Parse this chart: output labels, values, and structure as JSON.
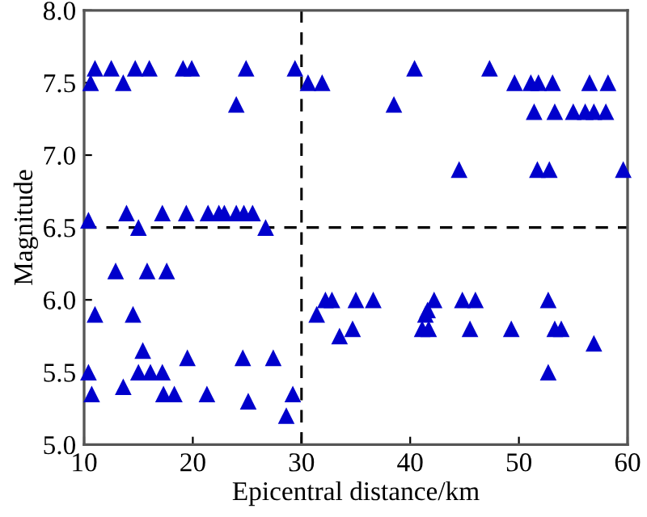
{
  "chart_data": {
    "type": "scatter",
    "xlabel": "Epicentral distance/km",
    "ylabel": "Magnitude",
    "x": [
      11.0,
      12.5,
      14.7,
      16.0,
      19.1,
      19.9,
      24.9,
      29.4,
      40.4,
      47.3,
      10.6,
      13.6,
      30.6,
      31.9,
      49.6,
      51.1,
      51.8,
      53.1,
      56.5,
      58.2,
      24.0,
      38.5,
      51.4,
      53.3,
      55.0,
      56.1,
      56.9,
      58.0,
      44.5,
      51.7,
      52.8,
      59.6,
      13.9,
      17.2,
      19.4,
      21.4,
      22.4,
      22.9,
      24.0,
      24.7,
      25.5,
      10.4,
      15.0,
      26.7,
      12.9,
      15.8,
      17.6,
      11.0,
      14.5,
      15.4,
      19.5,
      24.6,
      27.4,
      10.4,
      15.0,
      16.1,
      17.2,
      13.6,
      10.7,
      17.3,
      18.3,
      21.3,
      25.1,
      29.2,
      28.6,
      31.4,
      32.2,
      32.8,
      33.5,
      34.7,
      35.0,
      36.6,
      42.2,
      41.6,
      41.4,
      41.1,
      41.7,
      44.8,
      46.0,
      45.5,
      49.3,
      52.7,
      53.3,
      53.9,
      56.9,
      52.7
    ],
    "values": [
      7.6,
      7.6,
      7.6,
      7.6,
      7.6,
      7.6,
      7.6,
      7.6,
      7.6,
      7.6,
      7.5,
      7.5,
      7.5,
      7.5,
      7.5,
      7.5,
      7.5,
      7.5,
      7.5,
      7.5,
      7.35,
      7.35,
      7.3,
      7.3,
      7.3,
      7.3,
      7.3,
      7.3,
      6.9,
      6.9,
      6.9,
      6.9,
      6.6,
      6.6,
      6.6,
      6.6,
      6.6,
      6.6,
      6.6,
      6.6,
      6.6,
      6.55,
      6.5,
      6.5,
      6.2,
      6.2,
      6.2,
      5.9,
      5.9,
      5.65,
      5.6,
      5.6,
      5.6,
      5.5,
      5.5,
      5.5,
      5.5,
      5.4,
      5.35,
      5.35,
      5.35,
      5.35,
      5.3,
      5.35,
      5.2,
      5.9,
      6.0,
      6.0,
      5.75,
      5.8,
      6.0,
      6.0,
      6.0,
      5.93,
      5.9,
      5.8,
      5.8,
      6.0,
      6.0,
      5.8,
      5.8,
      6.0,
      5.8,
      5.8,
      5.7,
      5.5
    ],
    "color": "#0000cc",
    "marker": "triangle",
    "xlim": [
      10,
      60
    ],
    "xticks": [
      10,
      20,
      30,
      40,
      50,
      60
    ],
    "ylim": [
      5.0,
      8.0
    ],
    "yticks": [
      {
        "value": 5.0,
        "label": "5.0"
      },
      {
        "value": 5.5,
        "label": "5.5"
      },
      {
        "value": 6.0,
        "label": "6.0"
      },
      {
        "value": 6.5,
        "label": "6.5"
      },
      {
        "value": 7.0,
        "label": "7.0"
      },
      {
        "value": 7.5,
        "label": "7.5"
      },
      {
        "value": 8.0,
        "label": "8.0"
      }
    ],
    "ref_lines": [
      {
        "axis": "x",
        "value": 30,
        "color": "#000000",
        "line_style": "dashed"
      },
      {
        "axis": "y",
        "value": 6.5,
        "color": "#000000",
        "line_style": "dashed"
      }
    ],
    "grid": false,
    "legend": false
  }
}
